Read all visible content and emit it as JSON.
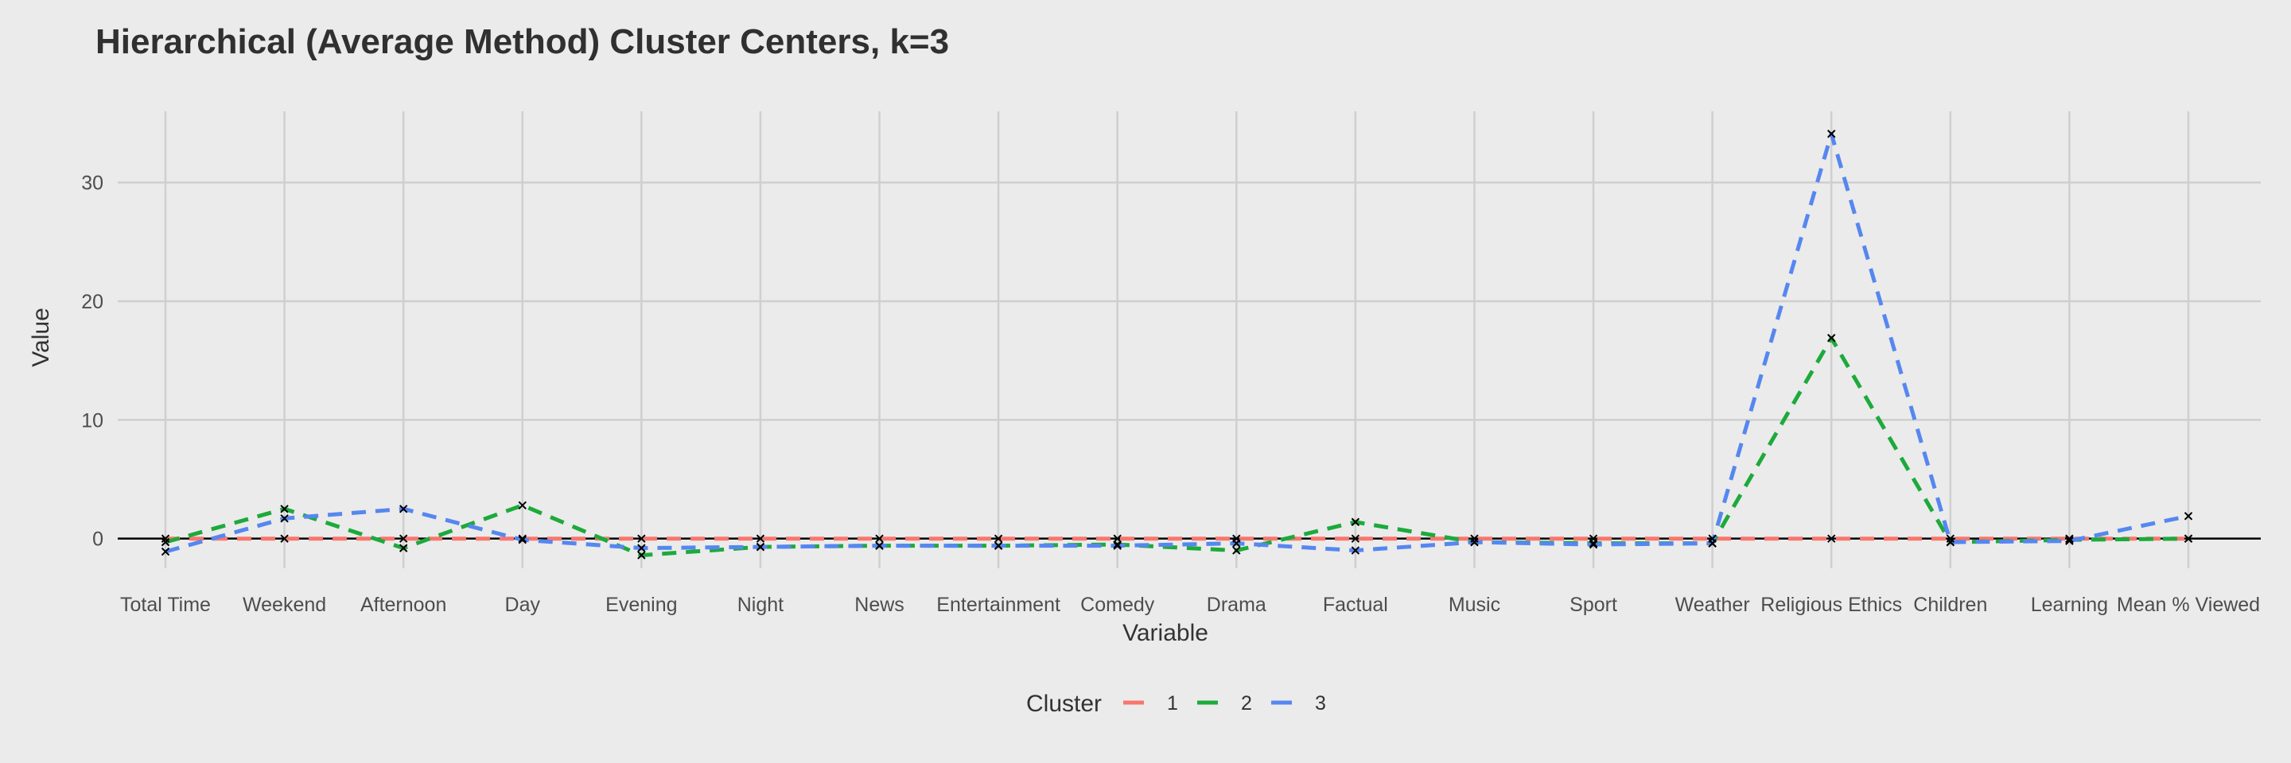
{
  "chart_data": {
    "type": "line",
    "title": "Hierarchical (Average Method)  Cluster Centers, k=3",
    "xlabel": "Variable",
    "ylabel": "Value",
    "categories": [
      "Total Time",
      "Weekend",
      "Afternoon",
      "Day",
      "Evening",
      "Night",
      "News",
      "Entertainment",
      "Comedy",
      "Drama",
      "Factual",
      "Music",
      "Sport",
      "Weather",
      "Religious Ethics",
      "Children",
      "Learning",
      "Mean % Viewed"
    ],
    "yticks": [
      0,
      10,
      20,
      30
    ],
    "ylim": [
      -2.5,
      36
    ],
    "grid": true,
    "legend_position": "bottom",
    "legend_title": "Cluster",
    "series": [
      {
        "name": "1",
        "color": "#F8766D",
        "values": [
          0.0,
          0.0,
          0.0,
          0.0,
          0.0,
          0.0,
          0.0,
          0.0,
          0.0,
          0.0,
          0.0,
          0.0,
          0.0,
          0.0,
          0.0,
          0.0,
          0.0,
          0.0
        ]
      },
      {
        "name": "2",
        "color": "#1DAA3B",
        "values": [
          -0.3,
          2.5,
          -0.8,
          2.8,
          -1.4,
          -0.7,
          -0.6,
          -0.6,
          -0.5,
          -1.0,
          1.4,
          -0.3,
          -0.4,
          -0.4,
          16.9,
          -0.3,
          -0.1,
          0.0
        ]
      },
      {
        "name": "3",
        "color": "#5687F0",
        "values": [
          -1.1,
          1.7,
          2.5,
          -0.1,
          -0.8,
          -0.7,
          -0.6,
          -0.6,
          -0.6,
          -0.4,
          -1.0,
          -0.3,
          -0.5,
          -0.4,
          34.1,
          -0.3,
          -0.2,
          1.9
        ]
      }
    ]
  }
}
